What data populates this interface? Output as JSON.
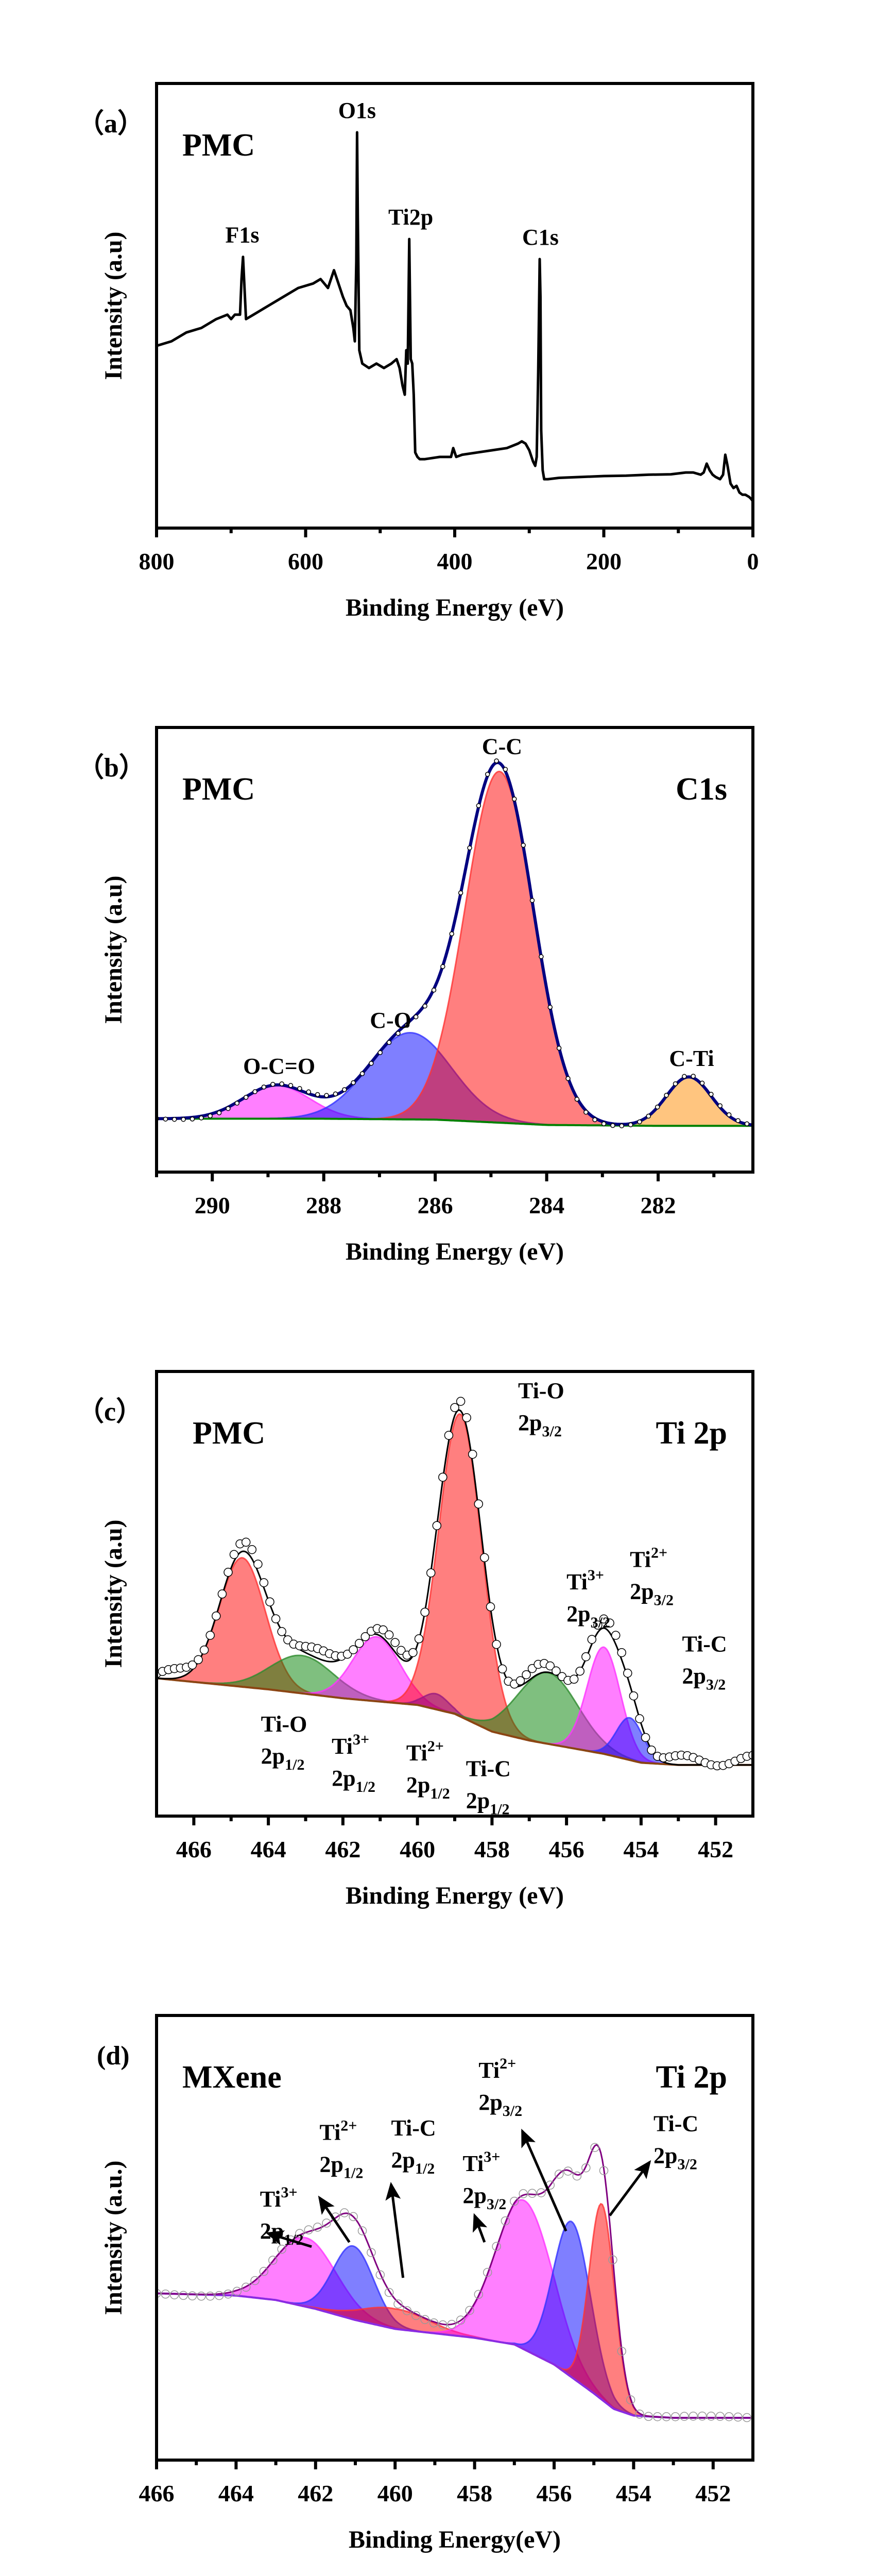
{
  "chart_data": [
    {
      "id": "a",
      "type": "line",
      "panel_label": "（a）",
      "sample": "PMC",
      "region": "",
      "xlabel": "Binding Energy (eV)",
      "ylabel": "Intensity (a.u)",
      "xlim": [
        800,
        0
      ],
      "ylim": [
        0,
        1
      ],
      "xticks": [
        800,
        600,
        400,
        200,
        0
      ],
      "minor_xticks": [
        700,
        500,
        300,
        100
      ],
      "colors": {
        "line": "#000000"
      },
      "series": [
        {
          "name": "survey",
          "x": [
            800,
            780,
            760,
            740,
            720,
            705,
            700,
            695,
            688,
            686,
            684,
            682,
            680,
            670,
            650,
            630,
            610,
            590,
            580,
            575,
            570,
            566,
            562,
            558,
            550,
            545,
            540,
            536,
            534,
            532,
            531,
            530,
            528,
            524,
            515,
            505,
            495,
            485,
            478,
            474,
            470,
            467,
            465,
            463,
            461,
            459,
            457,
            455,
            453,
            450,
            447,
            440,
            420,
            405,
            402,
            400,
            398,
            390,
            370,
            350,
            330,
            315,
            310,
            305,
            300,
            295,
            292,
            290,
            288,
            286,
            285,
            284,
            282,
            280,
            275,
            260,
            230,
            200,
            170,
            140,
            110,
            90,
            80,
            70,
            66,
            62,
            58,
            54,
            50,
            44,
            40,
            37,
            34,
            30,
            26,
            22,
            18,
            14,
            10,
            5,
            2,
            0
          ],
          "y": [
            0.41,
            0.42,
            0.44,
            0.45,
            0.47,
            0.48,
            0.47,
            0.48,
            0.48,
            0.56,
            0.61,
            0.54,
            0.47,
            0.48,
            0.5,
            0.52,
            0.54,
            0.55,
            0.56,
            0.55,
            0.54,
            0.56,
            0.58,
            0.56,
            0.52,
            0.5,
            0.49,
            0.45,
            0.42,
            0.6,
            0.89,
            0.7,
            0.4,
            0.37,
            0.36,
            0.37,
            0.36,
            0.37,
            0.38,
            0.36,
            0.32,
            0.3,
            0.4,
            0.37,
            0.65,
            0.38,
            0.37,
            0.3,
            0.17,
            0.16,
            0.155,
            0.155,
            0.16,
            0.16,
            0.18,
            0.17,
            0.16,
            0.165,
            0.17,
            0.175,
            0.18,
            0.19,
            0.195,
            0.19,
            0.175,
            0.15,
            0.14,
            0.16,
            0.35,
            0.605,
            0.52,
            0.22,
            0.13,
            0.11,
            0.11,
            0.113,
            0.115,
            0.117,
            0.118,
            0.12,
            0.121,
            0.125,
            0.125,
            0.12,
            0.125,
            0.145,
            0.13,
            0.12,
            0.115,
            0.11,
            0.12,
            0.165,
            0.14,
            0.1,
            0.09,
            0.095,
            0.08,
            0.075,
            0.075,
            0.07,
            0.065,
            0.06
          ]
        }
      ],
      "annotations": [
        {
          "text": "F1s",
          "x": 685
        },
        {
          "text": "O1s",
          "x": 531
        },
        {
          "text": "Ti2p",
          "x": 459
        },
        {
          "text": "C1s",
          "x": 285
        }
      ]
    },
    {
      "id": "b",
      "type": "area",
      "panel_label": "（b）",
      "sample": "PMC",
      "region": "C1s",
      "xlabel": "Binding Energy (eV)",
      "ylabel": "Intensity (a.u)",
      "xlim": [
        291,
        280.3
      ],
      "ylim": [
        0,
        1
      ],
      "xticks": [
        290,
        288,
        286,
        284,
        282
      ],
      "minor_xticks": [
        291,
        289,
        287,
        285,
        283,
        281
      ],
      "baseline": {
        "x": [
          291,
          288,
          286,
          284,
          282,
          280.3
        ],
        "y": [
          0.12,
          0.12,
          0.118,
          0.106,
          0.104,
          0.104
        ]
      },
      "colors": {
        "envelope": "#000080",
        "points": "#ffffff",
        "baseline": "#008000"
      },
      "components": [
        {
          "name": "O-C=O",
          "center": 288.85,
          "height": 0.075,
          "fwhm": 1.4,
          "fill": "#ff00ff",
          "stroke": "#ff33ff"
        },
        {
          "name": "C-O",
          "center": 286.45,
          "height": 0.195,
          "fwhm": 1.75,
          "fill": "#0000ff",
          "stroke": "#3333ff"
        },
        {
          "name": "C-C",
          "center": 284.85,
          "height": 0.79,
          "fwhm": 1.45,
          "fill": "#ff0000",
          "stroke": "#ff3333"
        },
        {
          "name": "C-Ti",
          "center": 281.45,
          "height": 0.11,
          "fwhm": 0.95,
          "fill": "#ff8c00",
          "stroke": "#ff9933"
        }
      ],
      "annotations": [
        {
          "text": "O-C=O",
          "x": 288.8
        },
        {
          "text": "C-O",
          "x": 286.8
        },
        {
          "text": "C-C",
          "x": 284.8
        },
        {
          "text": "C-Ti",
          "x": 281.4
        }
      ]
    },
    {
      "id": "c",
      "type": "area",
      "panel_label": "（c）",
      "sample": "PMC",
      "region": "Ti 2p",
      "xlabel": "Binding Energy (eV)",
      "ylabel": "Intensity (a.u)",
      "xlim": [
        467,
        451
      ],
      "ylim": [
        0,
        1
      ],
      "xticks": [
        466,
        464,
        462,
        460,
        458,
        456,
        454,
        452
      ],
      "minor_xticks": [
        465,
        463,
        461,
        459,
        457,
        455,
        453
      ],
      "baseline": {
        "x": [
          467,
          464,
          462,
          460,
          459,
          458,
          457,
          456,
          455,
          454,
          453,
          451
        ],
        "y": [
          0.31,
          0.285,
          0.265,
          0.25,
          0.23,
          0.19,
          0.17,
          0.155,
          0.14,
          0.12,
          0.115,
          0.115
        ]
      },
      "colors": {
        "envelope": "#000000",
        "points": "#ffffff",
        "baseline": "#8b4513"
      },
      "components": [
        {
          "name": "Ti-O 2p1/2",
          "center": 464.7,
          "height": 0.29,
          "fwhm": 1.45,
          "fill": "#ff0000",
          "stroke": "#ff3333"
        },
        {
          "name": "Ti3+ 2p1/2",
          "center": 463.1,
          "height": 0.085,
          "fwhm": 2.0,
          "fill": "#008000",
          "stroke": "#2e8b2e"
        },
        {
          "name": "Ti2+ 2p1/2",
          "center": 461.1,
          "height": 0.145,
          "fwhm": 1.5,
          "fill": "#ff00ff",
          "stroke": "#ff33ff"
        },
        {
          "name": "Ti-C 2p1/2",
          "center": 459.5,
          "height": 0.035,
          "fwhm": 0.8,
          "fill": "#0000ff",
          "stroke": "#3333ff"
        },
        {
          "name": "Ti-O 2p3/2",
          "center": 458.85,
          "height": 0.68,
          "fwhm": 1.35,
          "fill": "#ff0000",
          "stroke": "#ff3333"
        },
        {
          "name": "Ti3+ 2p3/2",
          "center": 456.5,
          "height": 0.16,
          "fwhm": 1.9,
          "fill": "#008000",
          "stroke": "#2e8b2e"
        },
        {
          "name": "Ti2+ 2p3/2",
          "center": 455.0,
          "height": 0.24,
          "fwhm": 1.05,
          "fill": "#ff00ff",
          "stroke": "#ff33ff"
        },
        {
          "name": "Ti-C 2p3/2",
          "center": 454.3,
          "height": 0.095,
          "fwhm": 0.85,
          "fill": "#0000ff",
          "stroke": "#3333ff"
        }
      ],
      "annotations": [
        {
          "line1": "Ti-O",
          "line2": "2p",
          "sub": "1/2",
          "x": 464.2,
          "y": 0.19
        },
        {
          "line1": "Ti",
          "sup": "3+",
          "line2": "2p",
          "sub": "1/2",
          "x": 462.3,
          "y": 0.14
        },
        {
          "line1": "Ti",
          "sup": "2+",
          "line2": "2p",
          "sub": "1/2",
          "x": 460.3,
          "y": 0.125
        },
        {
          "line1": "Ti-C",
          "line2": "2p",
          "sub": "1/2",
          "x": 458.7,
          "y": 0.09
        },
        {
          "line1": "Ti-O",
          "line2": "2p",
          "sub": "3/2",
          "x": 457.3,
          "y": 0.94
        },
        {
          "line1": "Ti",
          "sup": "3+",
          "line2": "2p",
          "sub": "3/2",
          "x": 456.0,
          "y": 0.51
        },
        {
          "line1": "Ti",
          "sup": "2+",
          "line2": "2p",
          "sub": "3/2",
          "x": 454.3,
          "y": 0.56
        },
        {
          "line1": "Ti-C",
          "line2": "2p",
          "sub": "3/2",
          "x": 452.9,
          "y": 0.37
        }
      ]
    },
    {
      "id": "d",
      "type": "area",
      "panel_label": "(d)",
      "sample": "MXene",
      "region": "Ti 2p",
      "xlabel": "Binding Energy(eV)",
      "ylabel": "Intensity (a.u.)",
      "xlim": [
        466,
        451
      ],
      "ylim": [
        0,
        1
      ],
      "xticks": [
        466,
        464,
        462,
        460,
        458,
        456,
        454,
        452
      ],
      "minor_xticks": [
        465,
        463,
        461,
        459,
        457,
        455,
        453
      ],
      "baseline": {
        "x": [
          466,
          464,
          463,
          462,
          461,
          460,
          459,
          458,
          457,
          456,
          455,
          454.5,
          454,
          453,
          451
        ],
        "y": [
          0.375,
          0.37,
          0.36,
          0.34,
          0.315,
          0.295,
          0.285,
          0.275,
          0.26,
          0.215,
          0.15,
          0.115,
          0.1,
          0.095,
          0.095
        ]
      },
      "colors": {
        "envelope": "#800080",
        "points": "#aaaaaa",
        "baseline": "#8a2be2"
      },
      "components": [
        {
          "name": "Ti3+ 2p1/2",
          "center": 462.25,
          "height": 0.155,
          "fwhm": 1.8,
          "fill": "#ff00ff",
          "stroke": "#ff33ff"
        },
        {
          "name": "Ti2+ 2p1/2",
          "center": 461.05,
          "height": 0.165,
          "fwhm": 1.2,
          "fill": "#0000ff",
          "stroke": "#3333ff"
        },
        {
          "name": "Ti-C 2p1/2",
          "center": 460.0,
          "height": 0.045,
          "fwhm": 2.0,
          "fill": "#ff0000",
          "stroke": "#ff3333"
        },
        {
          "name": "Ti3+ 2p3/2",
          "center": 456.75,
          "height": 0.335,
          "fwhm": 1.7,
          "fill": "#ff00ff",
          "stroke": "#ff33ff"
        },
        {
          "name": "Ti2+ 2p3/2",
          "center": 455.55,
          "height": 0.35,
          "fwhm": 1.1,
          "fill": "#0000ff",
          "stroke": "#3333ff"
        },
        {
          "name": "Ti-C 2p3/2",
          "center": 454.8,
          "height": 0.44,
          "fwhm": 0.75,
          "fill": "#ff0000",
          "stroke": "#ff3333"
        }
      ],
      "annotations": [
        {
          "line1": "Ti",
          "sup": "3+",
          "line2": "2p",
          "sub": "1/2",
          "x": 463.4,
          "y": 0.57,
          "arrow_from": [
            462.1,
            0.48
          ],
          "arrow_to": [
            463.2,
            0.51
          ]
        },
        {
          "line1": "Ti",
          "sup": "2+",
          "line2": "2p",
          "sub": "1/2",
          "x": 461.9,
          "y": 0.72,
          "arrow_from": [
            461.15,
            0.49
          ],
          "arrow_to": [
            461.9,
            0.59
          ]
        },
        {
          "line1": "Ti-C",
          "line2": "2p",
          "sub": "1/2",
          "x": 460.1,
          "y": 0.73,
          "arrow_from": [
            459.8,
            0.41
          ],
          "arrow_to": [
            460.1,
            0.62
          ]
        },
        {
          "line1": "Ti",
          "sup": "3+",
          "line2": "2p",
          "sub": "3/2",
          "x": 458.3,
          "y": 0.65,
          "arrow_from": [
            457.75,
            0.49
          ],
          "arrow_to": [
            458.0,
            0.55
          ]
        },
        {
          "line1": "Ti",
          "sup": "2+",
          "line2": "2p",
          "sub": "3/2",
          "x": 457.9,
          "y": 0.86,
          "arrow_from": [
            455.7,
            0.515
          ],
          "arrow_to": [
            456.8,
            0.74
          ]
        },
        {
          "line1": "Ti-C",
          "line2": "2p",
          "sub": "3/2",
          "x": 453.5,
          "y": 0.74,
          "arrow_from": [
            454.6,
            0.55
          ],
          "arrow_to": [
            453.6,
            0.67
          ]
        }
      ]
    }
  ]
}
